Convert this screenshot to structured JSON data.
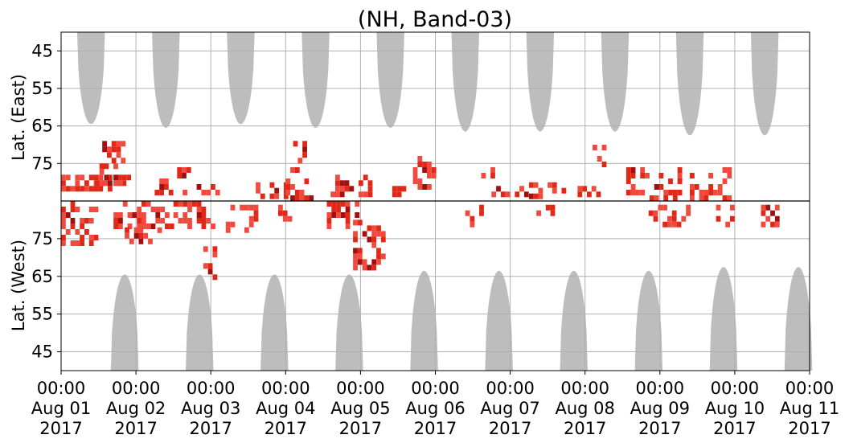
{
  "chart_data": {
    "type": "heatmap",
    "title": "(NH, Band-03)",
    "ylabel_top": "Lat. (East)",
    "ylabel_bottom": "Lat. (West)",
    "xlim": [
      "2017-08-01T00:00",
      "2017-08-11T00:00"
    ],
    "ylim_east": [
      40,
      85
    ],
    "ylim_west": [
      85,
      40
    ],
    "x_ticks": [
      {
        "line1": "00:00",
        "line2": "Aug 01",
        "line3": "2017"
      },
      {
        "line1": "00:00",
        "line2": "Aug 02",
        "line3": "2017"
      },
      {
        "line1": "00:00",
        "line2": "Aug 03",
        "line3": "2017"
      },
      {
        "line1": "00:00",
        "line2": "Aug 04",
        "line3": "2017"
      },
      {
        "line1": "00:00",
        "line2": "Aug 05",
        "line3": "2017"
      },
      {
        "line1": "00:00",
        "line2": "Aug 06",
        "line3": "2017"
      },
      {
        "line1": "00:00",
        "line2": "Aug 07",
        "line3": "2017"
      },
      {
        "line1": "00:00",
        "line2": "Aug 08",
        "line3": "2017"
      },
      {
        "line1": "00:00",
        "line2": "Aug 09",
        "line3": "2017"
      },
      {
        "line1": "00:00",
        "line2": "Aug 10",
        "line3": "2017"
      },
      {
        "line1": "00:00",
        "line2": "Aug 11",
        "line3": "2017"
      }
    ],
    "y_ticks_east": [
      "45",
      "55",
      "65",
      "75"
    ],
    "y_ticks_west": [
      "75",
      "65",
      "55",
      "45"
    ],
    "grid": true,
    "colors": {
      "daylight": "#bdbdbd",
      "grid": "#b0b0b0",
      "echo_light": "#f04a3e",
      "echo_mid": "#e02818",
      "echo_dark": "#a01010",
      "divider": "#000000"
    },
    "daylight_east": [
      {
        "center_day": 0.4,
        "min_lat": 64.5
      },
      {
        "center_day": 1.4,
        "min_lat": 65.5
      },
      {
        "center_day": 2.4,
        "min_lat": 64.5
      },
      {
        "center_day": 3.4,
        "min_lat": 65.5
      },
      {
        "center_day": 4.4,
        "min_lat": 65.5
      },
      {
        "center_day": 5.4,
        "min_lat": 66.5
      },
      {
        "center_day": 6.4,
        "min_lat": 66.5
      },
      {
        "center_day": 7.4,
        "min_lat": 66.5
      },
      {
        "center_day": 8.4,
        "min_lat": 67.5
      },
      {
        "center_day": 9.4,
        "min_lat": 67.5
      }
    ],
    "daylight_west": [
      {
        "center_day": 0.85,
        "min_lat": 65.5
      },
      {
        "center_day": 1.85,
        "min_lat": 65.5
      },
      {
        "center_day": 2.85,
        "min_lat": 65.5
      },
      {
        "center_day": 3.85,
        "min_lat": 65.5
      },
      {
        "center_day": 4.85,
        "min_lat": 66.5
      },
      {
        "center_day": 5.85,
        "min_lat": 66.5
      },
      {
        "center_day": 6.85,
        "min_lat": 66.5
      },
      {
        "center_day": 7.85,
        "min_lat": 66.5
      },
      {
        "center_day": 8.85,
        "min_lat": 67.5
      },
      {
        "center_day": 9.85,
        "min_lat": 67.5
      }
    ],
    "echo_clusters": [
      {
        "hemi": "east",
        "day_start": 0.0,
        "day_end": 0.95,
        "lat_min": 78,
        "lat_max": 82,
        "intensity": 0.75
      },
      {
        "hemi": "east",
        "day_start": 0.45,
        "day_end": 0.8,
        "lat_min": 75,
        "lat_max": 80,
        "intensity": 0.6
      },
      {
        "hemi": "east",
        "day_start": 0.55,
        "day_end": 0.8,
        "lat_min": 69,
        "lat_max": 75,
        "intensity": 0.5
      },
      {
        "hemi": "east",
        "day_start": 1.25,
        "day_end": 2.1,
        "lat_min": 79,
        "lat_max": 83,
        "intensity": 0.6
      },
      {
        "hemi": "east",
        "day_start": 1.55,
        "day_end": 1.7,
        "lat_min": 76,
        "lat_max": 79,
        "intensity": 0.8
      },
      {
        "hemi": "east",
        "day_start": 2.6,
        "day_end": 3.0,
        "lat_min": 80,
        "lat_max": 84,
        "intensity": 0.45
      },
      {
        "hemi": "east",
        "day_start": 3.0,
        "day_end": 3.35,
        "lat_min": 76,
        "lat_max": 84,
        "intensity": 0.65
      },
      {
        "hemi": "east",
        "day_start": 3.1,
        "day_end": 3.25,
        "lat_min": 69,
        "lat_max": 75,
        "intensity": 0.55
      },
      {
        "hemi": "east",
        "day_start": 3.6,
        "day_end": 4.1,
        "lat_min": 78,
        "lat_max": 84,
        "intensity": 0.7
      },
      {
        "hemi": "east",
        "day_start": 4.3,
        "day_end": 4.75,
        "lat_min": 81,
        "lat_max": 84,
        "intensity": 0.4
      },
      {
        "hemi": "east",
        "day_start": 4.7,
        "day_end": 5.0,
        "lat_min": 73,
        "lat_max": 81,
        "intensity": 0.6
      },
      {
        "hemi": "east",
        "day_start": 5.55,
        "day_end": 5.75,
        "lat_min": 76,
        "lat_max": 79,
        "intensity": 0.5
      },
      {
        "hemi": "east",
        "day_start": 5.75,
        "day_end": 6.2,
        "lat_min": 81,
        "lat_max": 84,
        "intensity": 0.45
      },
      {
        "hemi": "east",
        "day_start": 6.25,
        "day_end": 6.7,
        "lat_min": 80,
        "lat_max": 84,
        "intensity": 0.45
      },
      {
        "hemi": "east",
        "day_start": 6.9,
        "day_end": 7.3,
        "lat_min": 81,
        "lat_max": 83,
        "intensity": 0.55
      },
      {
        "hemi": "east",
        "day_start": 7.1,
        "day_end": 7.25,
        "lat_min": 70,
        "lat_max": 75,
        "intensity": 0.4
      },
      {
        "hemi": "east",
        "day_start": 7.55,
        "day_end": 8.25,
        "lat_min": 76,
        "lat_max": 84,
        "intensity": 0.5
      },
      {
        "hemi": "east",
        "day_start": 8.4,
        "day_end": 8.9,
        "lat_min": 76,
        "lat_max": 84,
        "intensity": 0.55
      },
      {
        "hemi": "west",
        "day_start": 0.0,
        "day_end": 0.45,
        "lat_min": 74,
        "lat_max": 85,
        "intensity": 0.5
      },
      {
        "hemi": "west",
        "day_start": 0.7,
        "day_end": 1.45,
        "lat_min": 78,
        "lat_max": 85,
        "intensity": 0.7
      },
      {
        "hemi": "west",
        "day_start": 0.85,
        "day_end": 1.3,
        "lat_min": 75,
        "lat_max": 78,
        "intensity": 0.55
      },
      {
        "hemi": "west",
        "day_start": 1.5,
        "day_end": 2.05,
        "lat_min": 78,
        "lat_max": 85,
        "intensity": 0.55
      },
      {
        "hemi": "west",
        "day_start": 1.9,
        "day_end": 2.05,
        "lat_min": 65,
        "lat_max": 73,
        "intensity": 0.5
      },
      {
        "hemi": "west",
        "day_start": 2.2,
        "day_end": 2.7,
        "lat_min": 77,
        "lat_max": 84,
        "intensity": 0.5
      },
      {
        "hemi": "west",
        "day_start": 2.9,
        "day_end": 3.1,
        "lat_min": 80,
        "lat_max": 84,
        "intensity": 0.4
      },
      {
        "hemi": "west",
        "day_start": 3.55,
        "day_end": 3.95,
        "lat_min": 79,
        "lat_max": 85,
        "intensity": 0.65
      },
      {
        "hemi": "west",
        "day_start": 3.9,
        "day_end": 4.3,
        "lat_min": 68,
        "lat_max": 80,
        "intensity": 0.55
      },
      {
        "hemi": "west",
        "day_start": 5.4,
        "day_end": 5.6,
        "lat_min": 79,
        "lat_max": 84,
        "intensity": 0.4
      },
      {
        "hemi": "west",
        "day_start": 6.35,
        "day_end": 6.75,
        "lat_min": 80,
        "lat_max": 84,
        "intensity": 0.4
      },
      {
        "hemi": "west",
        "day_start": 7.85,
        "day_end": 8.35,
        "lat_min": 79,
        "lat_max": 84,
        "intensity": 0.45
      },
      {
        "hemi": "west",
        "day_start": 8.75,
        "day_end": 8.95,
        "lat_min": 79,
        "lat_max": 84,
        "intensity": 0.35
      },
      {
        "hemi": "west",
        "day_start": 9.35,
        "day_end": 9.6,
        "lat_min": 79,
        "lat_max": 84,
        "intensity": 0.45
      }
    ]
  }
}
